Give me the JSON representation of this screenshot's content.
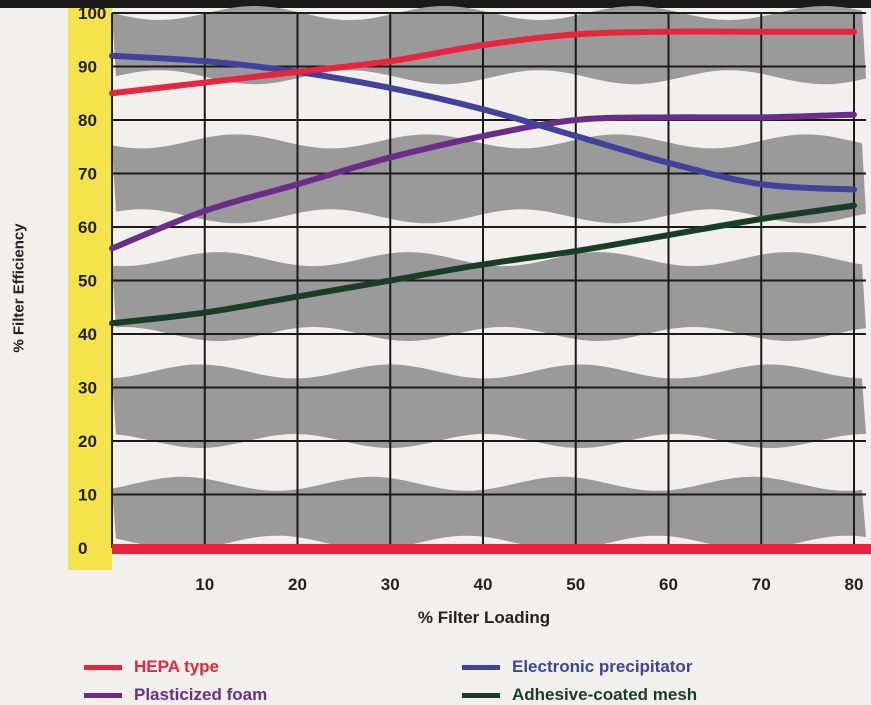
{
  "chart_data": {
    "type": "line",
    "xlabel": "% Filter Loading",
    "ylabel": "% Filter Efficiency",
    "xlim": [
      0,
      80
    ],
    "ylim": [
      0,
      100
    ],
    "x_ticks": [
      "10",
      "20",
      "30",
      "40",
      "50",
      "60",
      "70",
      "80"
    ],
    "y_ticks": [
      "0",
      "10",
      "20",
      "30",
      "40",
      "50",
      "60",
      "70",
      "80",
      "90",
      "100"
    ],
    "grid": true,
    "legend_position": "bottom",
    "series": [
      {
        "name": "HEPA type",
        "color": "#e8253f",
        "x": [
          0,
          10,
          20,
          30,
          40,
          50,
          60,
          70,
          80
        ],
        "y": [
          85,
          87,
          89,
          91,
          94,
          96,
          96.5,
          96.5,
          96.5
        ]
      },
      {
        "name": "Electronic precipitator",
        "color": "#42429a",
        "x": [
          0,
          10,
          20,
          30,
          40,
          50,
          60,
          70,
          80
        ],
        "y": [
          92,
          91,
          89,
          86,
          82,
          77,
          72,
          68,
          67
        ]
      },
      {
        "name": "Plasticized foam",
        "color": "#6a2e8a",
        "x": [
          0,
          10,
          20,
          30,
          40,
          50,
          60,
          70,
          80
        ],
        "y": [
          56,
          63,
          68,
          73,
          77,
          80,
          80.5,
          80.5,
          81
        ]
      },
      {
        "name": "Adhesive-coated mesh",
        "color": "#1a3d2a",
        "x": [
          0,
          10,
          20,
          30,
          40,
          50,
          60,
          70,
          80
        ],
        "y": [
          42,
          44,
          47,
          50,
          53,
          55.5,
          58.5,
          61.5,
          64
        ]
      }
    ],
    "baseline_color": "#e8253f",
    "band_color": "#9a9a9a",
    "grid_color": "#1a1a1a",
    "axis_strip_color": "#f5e34c"
  }
}
